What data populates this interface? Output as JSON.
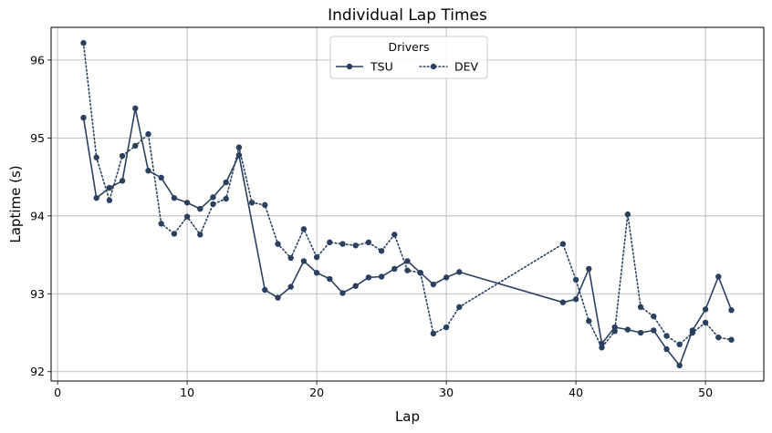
{
  "chart_data": {
    "type": "line",
    "title": "Individual Lap Times",
    "xlabel": "Lap",
    "ylabel": "Laptime (s)",
    "xlim": [
      -0.5,
      54.5
    ],
    "ylim": [
      91.88,
      96.42
    ],
    "xticks": [
      0,
      10,
      20,
      30,
      40,
      50
    ],
    "yticks": [
      92,
      93,
      94,
      95,
      96
    ],
    "grid": true,
    "legend": {
      "title": "Drivers",
      "position": "top-center",
      "columns": 2
    },
    "series": [
      {
        "name": "TSU",
        "color": "#2b405e",
        "linestyle": "solid",
        "x": [
          2,
          3,
          4,
          5,
          6,
          7,
          8,
          9,
          10,
          11,
          12,
          13,
          14,
          16,
          17,
          18,
          19,
          20,
          21,
          22,
          23,
          24,
          25,
          26,
          27,
          28,
          29,
          30,
          31,
          39,
          40,
          41,
          42,
          43,
          44,
          45,
          46,
          47,
          48,
          49,
          50,
          51,
          52
        ],
        "y": [
          95.26,
          94.23,
          94.36,
          94.45,
          95.38,
          94.58,
          94.49,
          94.23,
          94.17,
          94.09,
          94.24,
          94.43,
          94.78,
          93.05,
          92.95,
          93.09,
          93.42,
          93.27,
          93.19,
          93.01,
          93.1,
          93.21,
          93.22,
          93.32,
          93.42,
          93.27,
          93.12,
          93.21,
          93.28,
          92.89,
          92.93,
          93.32,
          92.36,
          92.57,
          92.54,
          92.5,
          92.53,
          92.29,
          92.08,
          92.53,
          92.8,
          93.22,
          92.79
        ]
      },
      {
        "name": "DEV",
        "color": "#2b405e",
        "linestyle": "dotted",
        "x": [
          2,
          3,
          4,
          5,
          6,
          7,
          8,
          9,
          10,
          11,
          12,
          13,
          14,
          15,
          16,
          17,
          18,
          19,
          20,
          21,
          22,
          23,
          24,
          25,
          26,
          27,
          28,
          29,
          30,
          31,
          39,
          40,
          41,
          42,
          43,
          44,
          45,
          46,
          47,
          48,
          49,
          50,
          51,
          52
        ],
        "y": [
          96.22,
          94.75,
          94.2,
          94.77,
          94.9,
          95.05,
          93.9,
          93.77,
          93.99,
          93.76,
          94.15,
          94.22,
          94.88,
          94.17,
          94.14,
          93.64,
          93.46,
          93.83,
          93.47,
          93.66,
          93.64,
          93.62,
          93.66,
          93.55,
          93.76,
          93.3,
          93.27,
          92.49,
          92.57,
          92.83,
          93.64,
          93.18,
          92.65,
          92.31,
          92.52,
          94.02,
          92.83,
          92.71,
          92.46,
          92.35,
          92.5,
          92.63,
          92.44,
          92.41
        ]
      }
    ]
  }
}
